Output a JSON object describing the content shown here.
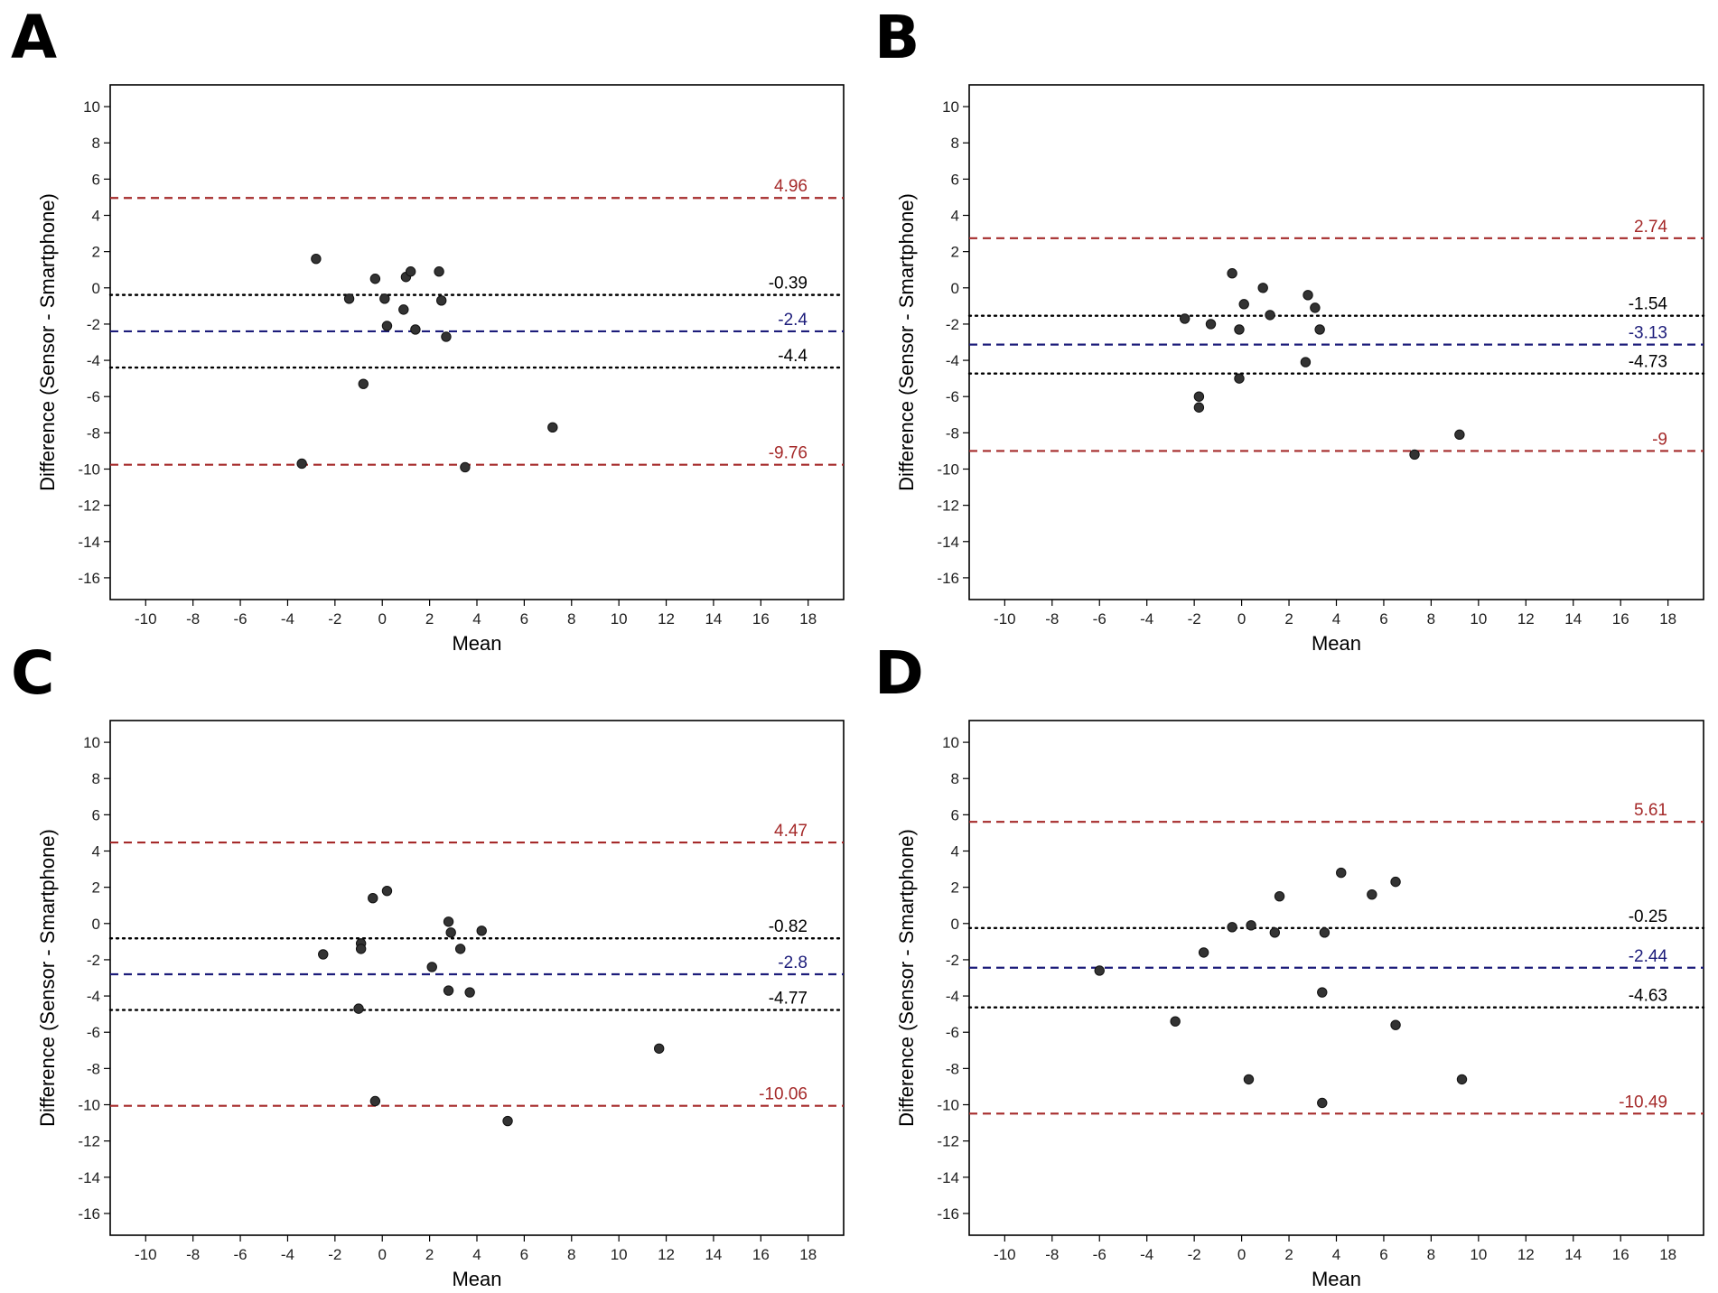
{
  "figure": {
    "colors": {
      "loa": "#a52a2a",
      "bias": "#1c1c7a",
      "ci": "#000000",
      "point": "#333333",
      "frame": "#000000"
    }
  },
  "chart_data": [
    {
      "panel": "A",
      "type": "scatter",
      "xlabel": "Mean",
      "ylabel": "Difference (Sensor - Smartphone)",
      "xlim": [
        -11.5,
        19.5
      ],
      "ylim": [
        -17.2,
        11.2
      ],
      "xticks": [
        -10,
        -8,
        -6,
        -4,
        -2,
        0,
        2,
        4,
        6,
        8,
        10,
        12,
        14,
        16,
        18
      ],
      "yticks": [
        10,
        8,
        6,
        4,
        2,
        0,
        -2,
        -4,
        -6,
        -8,
        -10,
        -12,
        -14,
        -16
      ],
      "lines": [
        {
          "role": "upper-loa",
          "value": 4.96,
          "label": "4.96",
          "style": "dashed",
          "color": "#a52a2a"
        },
        {
          "role": "upper-ci",
          "value": -0.39,
          "label": "-0.39",
          "style": "dotted",
          "color": "#000000"
        },
        {
          "role": "bias",
          "value": -2.4,
          "label": "-2.4",
          "style": "dashed",
          "color": "#1c1c7a"
        },
        {
          "role": "lower-ci",
          "value": -4.4,
          "label": "-4.4",
          "style": "dotted",
          "color": "#000000"
        },
        {
          "role": "lower-loa",
          "value": -9.76,
          "label": "-9.76",
          "style": "dashed",
          "color": "#a52a2a"
        }
      ],
      "points": [
        [
          -2.8,
          1.6
        ],
        [
          -1.4,
          -0.6
        ],
        [
          -0.8,
          -5.3
        ],
        [
          -0.3,
          0.5
        ],
        [
          0.1,
          -0.6
        ],
        [
          0.2,
          -2.1
        ],
        [
          0.9,
          -1.2
        ],
        [
          1.0,
          0.6
        ],
        [
          1.2,
          0.9
        ],
        [
          1.4,
          -2.3
        ],
        [
          2.4,
          0.9
        ],
        [
          2.5,
          -0.7
        ],
        [
          2.7,
          -2.7
        ],
        [
          3.5,
          -9.9
        ],
        [
          7.2,
          -7.7
        ],
        [
          -3.4,
          -9.7
        ]
      ]
    },
    {
      "panel": "B",
      "type": "scatter",
      "xlabel": "Mean",
      "ylabel": "Difference (Sensor - Smartphone)",
      "xlim": [
        -11.5,
        19.5
      ],
      "ylim": [
        -17.2,
        11.2
      ],
      "xticks": [
        -10,
        -8,
        -6,
        -4,
        -2,
        0,
        2,
        4,
        6,
        8,
        10,
        12,
        14,
        16,
        18
      ],
      "yticks": [
        10,
        8,
        6,
        4,
        2,
        0,
        -2,
        -4,
        -6,
        -8,
        -10,
        -12,
        -14,
        -16
      ],
      "lines": [
        {
          "role": "upper-loa",
          "value": 2.74,
          "label": "2.74",
          "style": "dashed",
          "color": "#a52a2a"
        },
        {
          "role": "upper-ci",
          "value": -1.54,
          "label": "-1.54",
          "style": "dotted",
          "color": "#000000"
        },
        {
          "role": "bias",
          "value": -3.13,
          "label": "-3.13",
          "style": "dashed",
          "color": "#1c1c7a"
        },
        {
          "role": "lower-ci",
          "value": -4.73,
          "label": "-4.73",
          "style": "dotted",
          "color": "#000000"
        },
        {
          "role": "lower-loa",
          "value": -9,
          "label": "-9",
          "style": "dashed",
          "color": "#a52a2a"
        }
      ],
      "points": [
        [
          -2.4,
          -1.7
        ],
        [
          -1.8,
          -6.0
        ],
        [
          -1.8,
          -6.6
        ],
        [
          -1.3,
          -2.0
        ],
        [
          -0.4,
          0.8
        ],
        [
          -0.1,
          -2.3
        ],
        [
          -0.1,
          -5.0
        ],
        [
          0.1,
          -0.9
        ],
        [
          0.9,
          0.0
        ],
        [
          1.2,
          -1.5
        ],
        [
          2.8,
          -0.4
        ],
        [
          2.7,
          -4.1
        ],
        [
          3.1,
          -1.1
        ],
        [
          3.3,
          -2.3
        ],
        [
          7.3,
          -9.2
        ],
        [
          9.2,
          -8.1
        ]
      ]
    },
    {
      "panel": "C",
      "type": "scatter",
      "xlabel": "Mean",
      "ylabel": "Difference (Sensor - Smartphone)",
      "xlim": [
        -11.5,
        19.5
      ],
      "ylim": [
        -17.2,
        11.2
      ],
      "xticks": [
        -10,
        -8,
        -6,
        -4,
        -2,
        0,
        2,
        4,
        6,
        8,
        10,
        12,
        14,
        16,
        18
      ],
      "yticks": [
        10,
        8,
        6,
        4,
        2,
        0,
        -2,
        -4,
        -6,
        -8,
        -10,
        -12,
        -14,
        -16
      ],
      "lines": [
        {
          "role": "upper-loa",
          "value": 4.47,
          "label": "4.47",
          "style": "dashed",
          "color": "#a52a2a"
        },
        {
          "role": "upper-ci",
          "value": -0.82,
          "label": "-0.82",
          "style": "dotted",
          "color": "#000000"
        },
        {
          "role": "bias",
          "value": -2.8,
          "label": "-2.8",
          "style": "dashed",
          "color": "#1c1c7a"
        },
        {
          "role": "lower-ci",
          "value": -4.77,
          "label": "-4.77",
          "style": "dotted",
          "color": "#000000"
        },
        {
          "role": "lower-loa",
          "value": -10.06,
          "label": "-10.06",
          "style": "dashed",
          "color": "#a52a2a"
        }
      ],
      "points": [
        [
          -2.5,
          -1.7
        ],
        [
          -0.9,
          -1.1
        ],
        [
          -0.9,
          -1.4
        ],
        [
          -1.0,
          -4.7
        ],
        [
          -0.4,
          1.4
        ],
        [
          0.2,
          1.8
        ],
        [
          -0.3,
          -9.8
        ],
        [
          2.1,
          -2.4
        ],
        [
          2.8,
          0.1
        ],
        [
          2.9,
          -0.5
        ],
        [
          3.3,
          -1.4
        ],
        [
          2.8,
          -3.7
        ],
        [
          3.7,
          -3.8
        ],
        [
          4.2,
          -0.4
        ],
        [
          5.3,
          -10.9
        ],
        [
          11.7,
          -6.9
        ]
      ]
    },
    {
      "panel": "D",
      "type": "scatter",
      "xlabel": "Mean",
      "ylabel": "Difference (Sensor - Smartphone)",
      "xlim": [
        -11.5,
        19.5
      ],
      "ylim": [
        -17.2,
        11.2
      ],
      "xticks": [
        -10,
        -8,
        -6,
        -4,
        -2,
        0,
        2,
        4,
        6,
        8,
        10,
        12,
        14,
        16,
        18
      ],
      "yticks": [
        10,
        8,
        6,
        4,
        2,
        0,
        -2,
        -4,
        -6,
        -8,
        -10,
        -12,
        -14,
        -16
      ],
      "lines": [
        {
          "role": "upper-loa",
          "value": 5.61,
          "label": "5.61",
          "style": "dashed",
          "color": "#a52a2a"
        },
        {
          "role": "upper-ci",
          "value": -0.25,
          "label": "-0.25",
          "style": "dotted",
          "color": "#000000"
        },
        {
          "role": "bias",
          "value": -2.44,
          "label": "-2.44",
          "style": "dashed",
          "color": "#1c1c7a"
        },
        {
          "role": "lower-ci",
          "value": -4.63,
          "label": "-4.63",
          "style": "dotted",
          "color": "#000000"
        },
        {
          "role": "lower-loa",
          "value": -10.49,
          "label": "-10.49",
          "style": "dashed",
          "color": "#a52a2a"
        }
      ],
      "points": [
        [
          -6.0,
          -2.6
        ],
        [
          -2.8,
          -5.4
        ],
        [
          -1.6,
          -1.6
        ],
        [
          -0.4,
          -0.2
        ],
        [
          0.4,
          -0.1
        ],
        [
          0.3,
          -8.6
        ],
        [
          1.4,
          -0.5
        ],
        [
          1.6,
          1.5
        ],
        [
          3.5,
          -0.5
        ],
        [
          3.4,
          -3.8
        ],
        [
          3.4,
          -9.9
        ],
        [
          4.2,
          2.8
        ],
        [
          5.5,
          1.6
        ],
        [
          6.5,
          2.3
        ],
        [
          6.5,
          -5.6
        ],
        [
          9.3,
          -8.6
        ]
      ]
    }
  ]
}
